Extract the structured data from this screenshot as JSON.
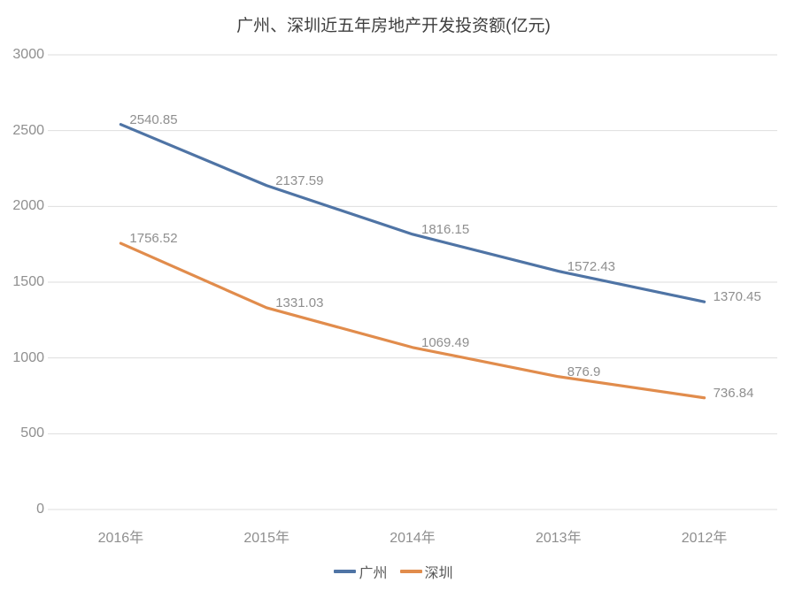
{
  "chart_data": {
    "type": "line",
    "title": "广州、深圳近五年房地产开发投资额(亿元)",
    "categories": [
      "2016年",
      "2015年",
      "2014年",
      "2013年",
      "2012年"
    ],
    "series": [
      {
        "name": "广州",
        "color": "#4f74a5",
        "values": [
          2540.85,
          2137.59,
          1816.15,
          1572.43,
          1370.45
        ]
      },
      {
        "name": "深圳",
        "color": "#e18c4c",
        "values": [
          1756.52,
          1331.03,
          1069.49,
          876.9,
          736.84
        ]
      }
    ],
    "xlabel": "",
    "ylabel": "",
    "ylim": [
      0,
      3000
    ],
    "yticks": [
      0,
      500,
      1000,
      1500,
      2000,
      2500,
      3000
    ],
    "grid": true,
    "data_labels_visible": true,
    "legend_position": "bottom",
    "colors": {
      "background": "#ffffff",
      "gridline": "#dedede",
      "axis_text": "#8f8f8f",
      "data_label_text": "#8f8f8f",
      "title_text": "#3f3f3f",
      "legend_text": "#595959"
    }
  }
}
